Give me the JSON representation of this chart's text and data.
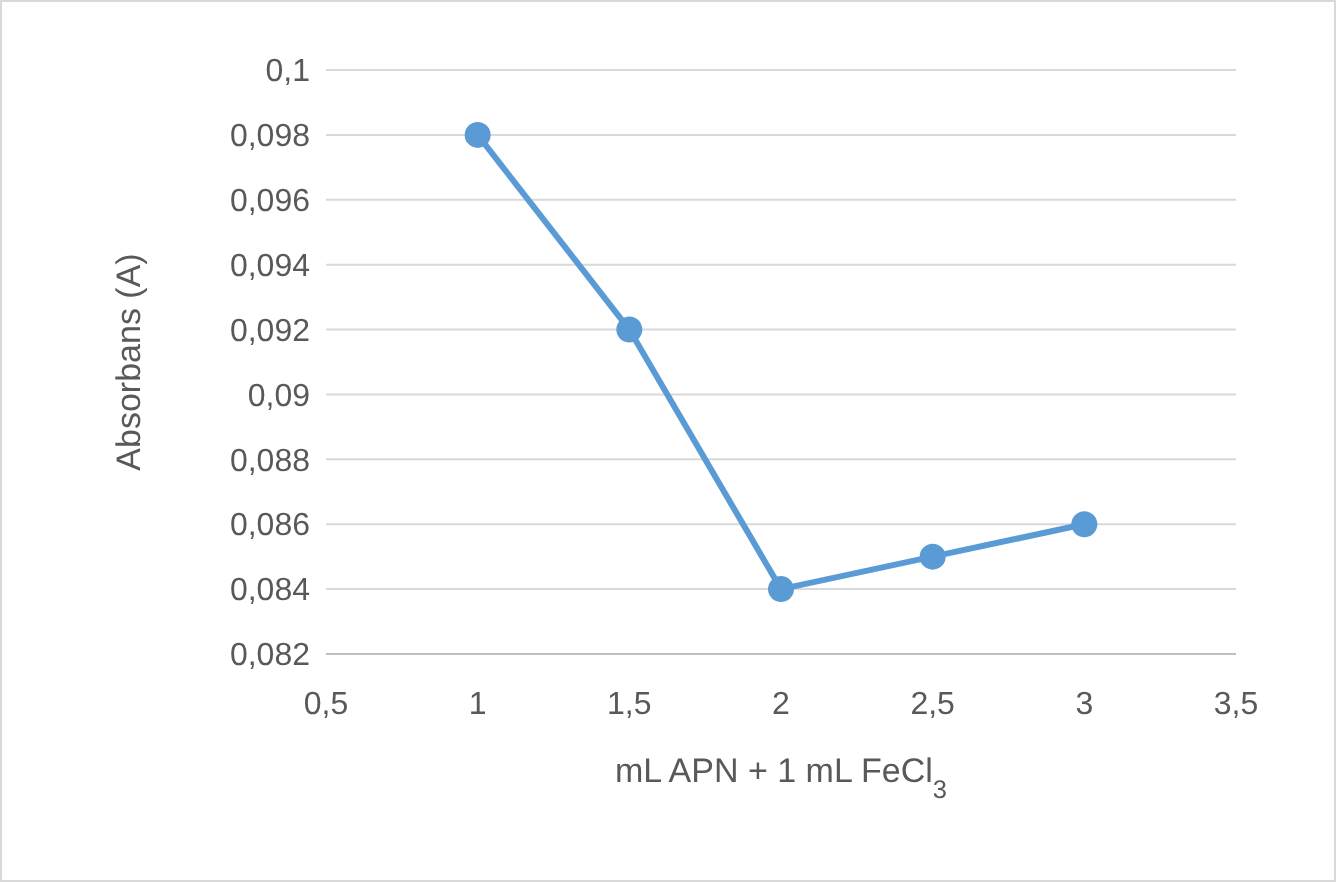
{
  "chart_data": {
    "type": "line",
    "xlabel": "mL APN + 1 mL FeCl$_{3}$",
    "ylabel": "Absorbans (A)",
    "x": [
      1,
      1.5,
      2,
      2.5,
      3
    ],
    "series": [
      {
        "color": "#5b9bd5",
        "values": [
          0.098,
          0.092,
          0.084,
          0.085,
          0.086
        ]
      }
    ],
    "xlim": [
      0.5,
      3.5
    ],
    "xticks": [
      {
        "value": 0.5,
        "label": "0,5"
      },
      {
        "value": 1,
        "label": "1"
      },
      {
        "value": 1.5,
        "label": "1,5"
      },
      {
        "value": 2,
        "label": "2"
      },
      {
        "value": 2.5,
        "label": "2,5"
      },
      {
        "value": 3,
        "label": "3"
      },
      {
        "value": 3.5,
        "label": "3,5"
      }
    ],
    "ylim": [
      0.082,
      0.1
    ],
    "yticks": [
      {
        "value": 0.082,
        "label": "0,082"
      },
      {
        "value": 0.084,
        "label": "0,084"
      },
      {
        "value": 0.086,
        "label": "0,086"
      },
      {
        "value": 0.088,
        "label": "0,088"
      },
      {
        "value": 0.09,
        "label": "0,09"
      },
      {
        "value": 0.092,
        "label": "0,092"
      },
      {
        "value": 0.094,
        "label": "0,094"
      },
      {
        "value": 0.096,
        "label": "0,096"
      },
      {
        "value": 0.098,
        "label": "0,098"
      },
      {
        "value": 0.1,
        "label": "0,1"
      }
    ],
    "grid": "y",
    "marker": "circle",
    "line_style": "solid"
  }
}
